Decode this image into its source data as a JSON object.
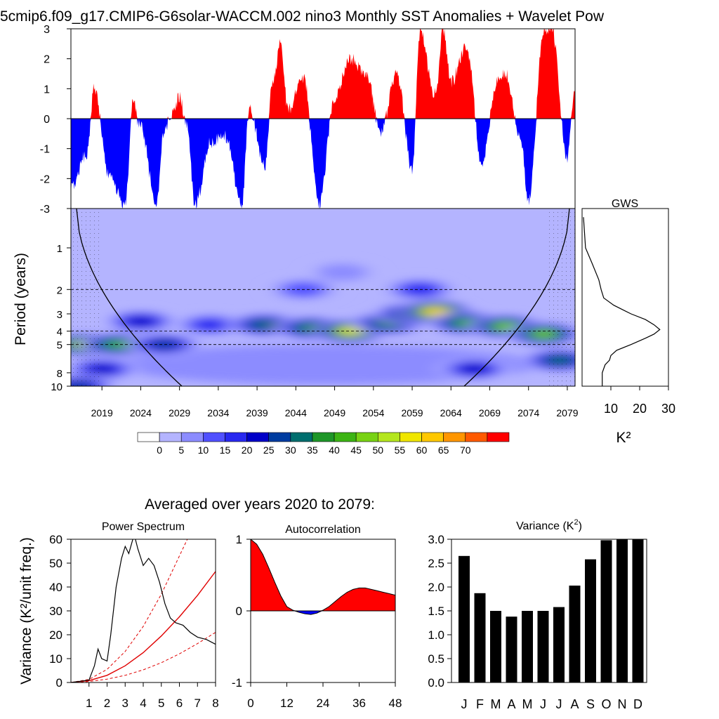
{
  "figure_title": "5cmip6.f09_g17.CMIP6-G6solar-WACCM.002 nino3 Monthly SST Anomalies + Wavelet Pow",
  "subtitle": "Averaged over years 2020 to 2079:",
  "chart_data": [
    {
      "id": "anomaly",
      "type": "area",
      "ylim": [
        -3,
        3
      ],
      "yticks": [
        "3",
        "2",
        "1",
        "0",
        "-1",
        "-2",
        "-3"
      ],
      "xlim": [
        2015,
        2080
      ],
      "colors": {
        "positive": "#ff0000",
        "negative": "#0000ff"
      },
      "anchor_years": [
        2015,
        2017,
        2018,
        2020,
        2022,
        2023,
        2024,
        2026,
        2027,
        2028,
        2029,
        2030,
        2031,
        2033,
        2035,
        2037,
        2038,
        2040,
        2041,
        2042,
        2043,
        2045,
        2047,
        2049,
        2051,
        2053,
        2055,
        2057,
        2059,
        2060,
        2062,
        2063,
        2064,
        2066,
        2068,
        2070,
        2071,
        2073,
        2074,
        2076,
        2077,
        2079,
        2080
      ],
      "anchor_values": [
        -2.3,
        -1.2,
        1.0,
        -2.0,
        -2.9,
        0.5,
        -0.3,
        -2.9,
        -0.5,
        0.2,
        0.7,
        -0.3,
        -2.9,
        -0.8,
        -0.6,
        -2.9,
        0.3,
        -1.6,
        1.2,
        2.5,
        0.3,
        1.4,
        -2.9,
        0.7,
        2.0,
        1.5,
        -0.4,
        1.5,
        -1.7,
        2.9,
        0.8,
        3.0,
        1.2,
        2.4,
        -1.5,
        1.3,
        1.5,
        -0.7,
        -2.8,
        3.0,
        3.0,
        -1.3,
        1.0
      ]
    },
    {
      "id": "wavelet",
      "type": "heatmap",
      "ylabel": "Period (years)",
      "yticks": [
        "1",
        "2",
        "3",
        "4",
        "5",
        "8",
        "10"
      ],
      "xticks": [
        "2019",
        "2024",
        "2029",
        "2034",
        "2039",
        "2044",
        "2049",
        "2054",
        "2059",
        "2064",
        "2069",
        "2074",
        "2079"
      ],
      "xlim": [
        2015,
        2080
      ],
      "colorbar": {
        "labels": [
          "0",
          "5",
          "10",
          "15",
          "20",
          "25",
          "30",
          "35",
          "40",
          "45",
          "50",
          "55",
          "60",
          "65",
          "70"
        ],
        "colors": [
          "#ffffff",
          "#b4b4ff",
          "#8c8cff",
          "#5050ff",
          "#2828f0",
          "#0000c8",
          "#003ca0",
          "#006e6e",
          "#1e9628",
          "#3cb414",
          "#78d214",
          "#b4e61e",
          "#f0e600",
          "#ffc800",
          "#ff9600",
          "#ff5a00",
          "#ff0000"
        ]
      },
      "blobs": [
        {
          "year": 2017,
          "period": 5.0,
          "level": 60
        },
        {
          "year": 2021,
          "period": 5.0,
          "level": 45
        },
        {
          "year": 2027,
          "period": 5.0,
          "level": 30
        },
        {
          "year": 2024,
          "period": 3.4,
          "level": 25
        },
        {
          "year": 2033,
          "period": 3.6,
          "level": 22
        },
        {
          "year": 2040,
          "period": 3.6,
          "level": 35
        },
        {
          "year": 2046,
          "period": 3.8,
          "level": 42
        },
        {
          "year": 2051,
          "period": 4.0,
          "level": 60
        },
        {
          "year": 2056,
          "period": 3.5,
          "level": 40
        },
        {
          "year": 2059,
          "period": 3.0,
          "level": 48
        },
        {
          "year": 2062,
          "period": 2.9,
          "level": 68
        },
        {
          "year": 2066,
          "period": 3.5,
          "level": 45
        },
        {
          "year": 2071,
          "period": 3.7,
          "level": 50
        },
        {
          "year": 2076,
          "period": 4.2,
          "level": 50
        },
        {
          "year": 2078,
          "period": 6.5,
          "level": 35
        },
        {
          "year": 2067,
          "period": 7.5,
          "level": 28
        },
        {
          "year": 2019,
          "period": 7.5,
          "level": 25
        },
        {
          "year": 2016,
          "period": 10.0,
          "level": 30
        },
        {
          "year": 2060,
          "period": 2.0,
          "level": 20
        },
        {
          "year": 2045,
          "period": 2.0,
          "level": 18
        },
        {
          "year": 2050,
          "period": 1.5,
          "level": 12
        }
      ],
      "fill_level": 7,
      "cone_of_influence": true,
      "significance_periods": [
        2,
        4,
        5
      ]
    },
    {
      "id": "gws",
      "type": "line",
      "title": "GWS",
      "xlabel": "K²",
      "xticks": [
        "10",
        "20",
        "30"
      ],
      "xlim": [
        0,
        30
      ],
      "period": [
        0.6,
        1.0,
        1.3,
        1.7,
        2.0,
        2.3,
        2.6,
        3.0,
        3.3,
        3.6,
        3.9,
        4.2,
        4.5,
        5.0,
        5.5,
        6.0,
        6.5,
        7.0,
        8.0,
        10.0
      ],
      "power": [
        0.5,
        1.2,
        3.5,
        5.8,
        6.6,
        7.5,
        11.0,
        17.0,
        22.0,
        25.0,
        27.0,
        25.0,
        22.0,
        17.0,
        12.0,
        10.0,
        9.5,
        8.0,
        7.0,
        7.0
      ]
    },
    {
      "id": "power",
      "type": "line",
      "title": "Power Spectrum",
      "ylabel": "Variance (K²/unit freq.)",
      "xticks": [
        "1",
        "2",
        "3",
        "4",
        "5",
        "6",
        "7",
        "8"
      ],
      "yticks": [
        "0",
        "10",
        "20",
        "30",
        "40",
        "50",
        "60"
      ],
      "xlim": [
        0,
        8
      ],
      "ylim": [
        0,
        60
      ],
      "spectrum": {
        "x": [
          0.0,
          0.5,
          1.0,
          1.1,
          1.3,
          1.5,
          1.7,
          2.0,
          2.2,
          2.5,
          2.8,
          3.0,
          3.2,
          3.5,
          3.7,
          4.0,
          4.3,
          4.6,
          4.9,
          5.2,
          5.5,
          5.8,
          6.2,
          6.6,
          7.0,
          7.5,
          8.0
        ],
        "y": [
          0.0,
          0.5,
          1.0,
          3.0,
          7.0,
          14.0,
          10.0,
          9.0,
          20.0,
          40.0,
          52.0,
          57.0,
          54.0,
          62.0,
          56.0,
          49.0,
          52.0,
          49.0,
          42.0,
          33.0,
          27.0,
          25.0,
          24.0,
          21.0,
          19.0,
          18.0,
          16.0
        ]
      },
      "red_noise": {
        "x": [
          0,
          1,
          2,
          3,
          4,
          5,
          6,
          7,
          8
        ],
        "y": [
          0,
          0.8,
          3.0,
          7.0,
          12.5,
          19.5,
          27.5,
          36.5,
          46.5
        ]
      },
      "red_noise_upper": {
        "x": [
          0,
          1,
          2,
          3,
          4,
          5,
          6,
          7
        ],
        "y": [
          0,
          1.3,
          5.5,
          13.0,
          23.5,
          37.0,
          53.0,
          69.0
        ]
      },
      "red_noise_lower": {
        "x": [
          0,
          1,
          2,
          3,
          4,
          5,
          6,
          7,
          8
        ],
        "y": [
          0,
          0.4,
          1.4,
          3.0,
          5.3,
          8.3,
          12.0,
          16.3,
          21.0
        ]
      },
      "colors": {
        "spectrum": "#000000",
        "red_noise": "#e00000"
      }
    },
    {
      "id": "autocorr",
      "type": "area",
      "title": "Autocorrelation",
      "xticks": [
        "0",
        "12",
        "24",
        "36",
        "48"
      ],
      "yticks": [
        "1",
        "0",
        "-1"
      ],
      "xlim": [
        0,
        48
      ],
      "ylim": [
        -1,
        1
      ],
      "x": [
        0,
        2,
        4,
        6,
        8,
        10,
        12,
        14,
        16,
        18,
        20,
        22,
        24,
        26,
        28,
        30,
        32,
        34,
        36,
        38,
        40,
        42,
        44,
        46,
        48
      ],
      "y": [
        1.0,
        0.93,
        0.79,
        0.6,
        0.4,
        0.21,
        0.06,
        0.01,
        -0.02,
        -0.04,
        -0.05,
        -0.03,
        0.01,
        0.06,
        0.13,
        0.2,
        0.26,
        0.3,
        0.32,
        0.32,
        0.3,
        0.28,
        0.26,
        0.24,
        0.22
      ],
      "colors": {
        "positive": "#ff0000",
        "negative": "#0000ff"
      }
    },
    {
      "id": "variance",
      "type": "bar",
      "title": "Variance (K²)",
      "categories": [
        "J",
        "F",
        "M",
        "A",
        "M",
        "J",
        "J",
        "A",
        "S",
        "O",
        "N",
        "D"
      ],
      "values": [
        2.65,
        1.87,
        1.5,
        1.38,
        1.5,
        1.5,
        1.58,
        2.03,
        2.58,
        2.98,
        3.0,
        3.0
      ],
      "yticks": [
        "0.0",
        "0.5",
        "1.0",
        "1.5",
        "2.0",
        "2.5",
        "3.0"
      ],
      "ylim": [
        0,
        3
      ],
      "colors": {
        "bar": "#000000"
      }
    }
  ]
}
